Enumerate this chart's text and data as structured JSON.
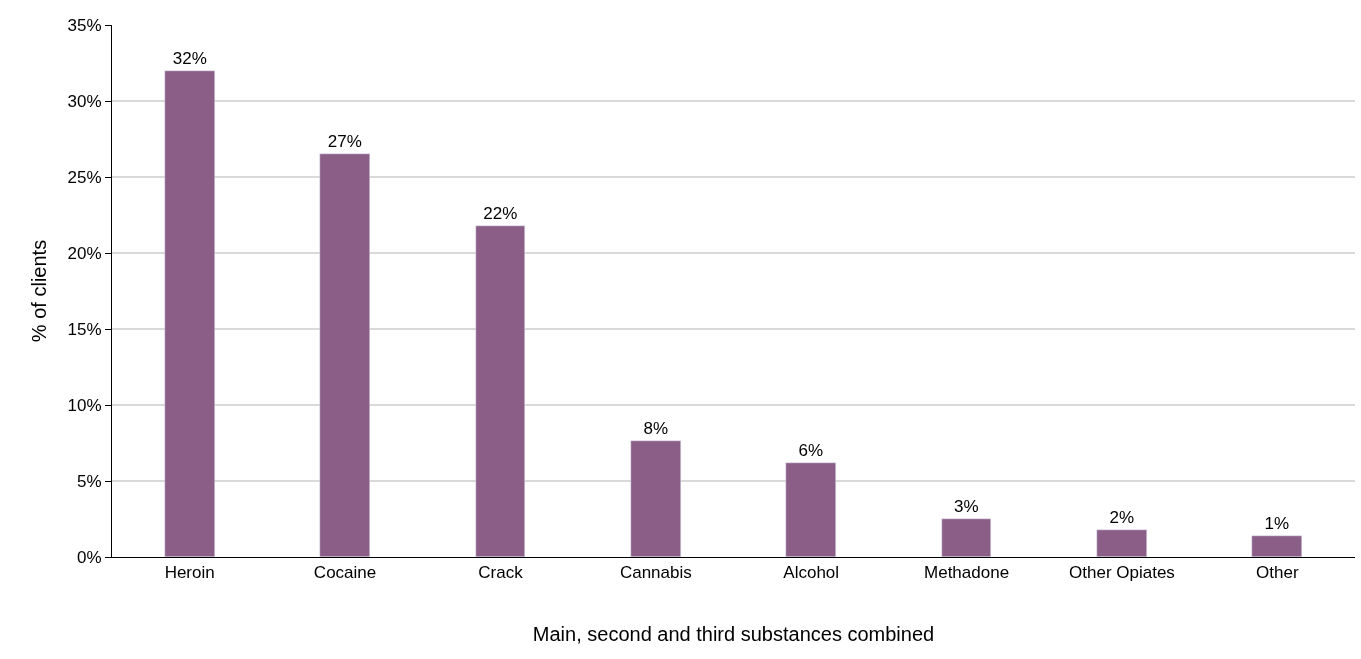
{
  "chart_data": {
    "type": "bar",
    "xlabel": "Main, second and third substances combined",
    "ylabel": "% of clients",
    "categories": [
      "Heroin",
      "Cocaine",
      "Crack",
      "Cannabis",
      "Alcohol",
      "Methadone",
      "Other Opiates",
      "Other"
    ],
    "values": [
      32,
      26.5,
      21.8,
      7.6,
      6.2,
      2.5,
      1.8,
      1.4
    ],
    "value_labels": [
      "32%",
      "27%",
      "22%",
      "8%",
      "6%",
      "3%",
      "2%",
      "1%"
    ],
    "color": "#8b5e87",
    "ylim": [
      0,
      35
    ],
    "yticks": [
      {
        "value": 0,
        "label": "0%"
      },
      {
        "value": 5,
        "label": "5%"
      },
      {
        "value": 10,
        "label": "10%"
      },
      {
        "value": 15,
        "label": "15%"
      },
      {
        "value": 20,
        "label": "20%"
      },
      {
        "value": 25,
        "label": "25%"
      },
      {
        "value": 30,
        "label": "30%"
      },
      {
        "value": 35,
        "label": "35%"
      }
    ],
    "grid": "y"
  }
}
